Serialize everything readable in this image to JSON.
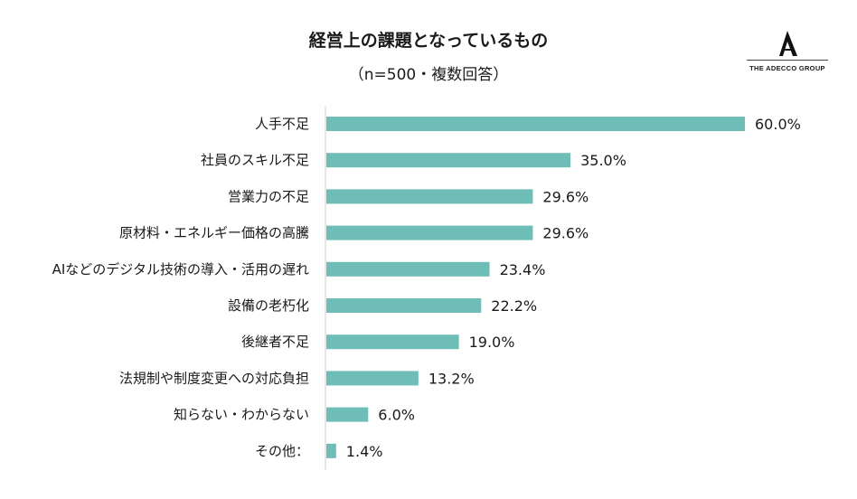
{
  "chart_data": {
    "type": "bar",
    "orientation": "horizontal",
    "title": "経営上の課題となっているもの",
    "subtitle": "（n=500・複数回答）",
    "categories": [
      "人手不足",
      "社員のスキル不足",
      "営業力の不足",
      "原材料・エネルギー価格の高騰",
      "AIなどのデジタル技術の導入・活用の遅れ",
      "設備の老朽化",
      "後継者不足",
      "法規制や制度変更への対応負担",
      "知らない・わからない",
      "その他："
    ],
    "values": [
      60.0,
      35.0,
      29.6,
      29.6,
      23.4,
      22.2,
      19.0,
      13.2,
      6.0,
      1.4
    ],
    "value_labels": [
      "60.0%",
      "35.0%",
      "29.6%",
      "29.6%",
      "23.4%",
      "22.2%",
      "19.0%",
      "13.2%",
      "6.0%",
      "1.4%"
    ],
    "xlim": [
      0,
      60
    ],
    "grid": false,
    "bar_color": "#6fbdb7"
  },
  "logo": {
    "text": "THE ADECCO GROUP",
    "icon": "adecco-a-icon"
  }
}
